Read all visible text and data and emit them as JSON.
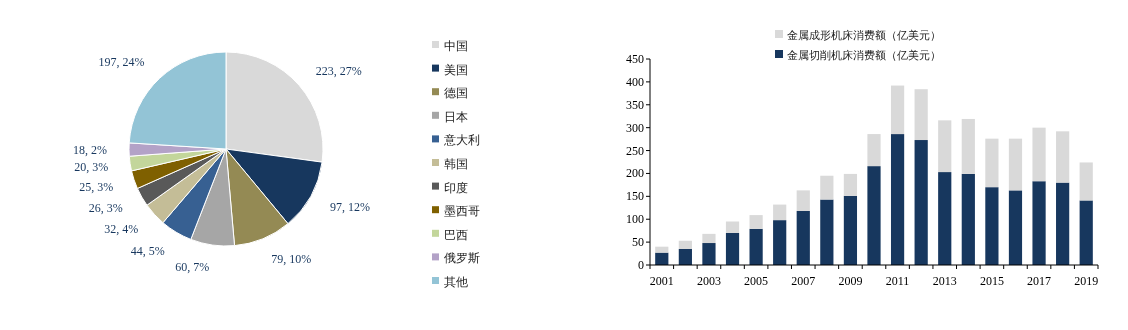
{
  "chart_data": [
    {
      "type": "pie",
      "categories": [
        "中国",
        "美国",
        "德国",
        "日本",
        "意大利",
        "韩国",
        "印度",
        "墨西哥",
        "巴西",
        "俄罗斯",
        "其他"
      ],
      "values": [
        223,
        97,
        79,
        60,
        44,
        32,
        26,
        25,
        20,
        18,
        197
      ],
      "value_labels": [
        "223, 27%",
        "97, 12%",
        "79, 10%",
        "60, 7%",
        "44, 5%",
        "32, 4%",
        "26, 3%",
        "25, 3%",
        "20, 3%",
        "18, 2%",
        "197, 24%"
      ],
      "colors": [
        "#d9d9d9",
        "#17375e",
        "#948a54",
        "#a6a6a6",
        "#376092",
        "#c4bd97",
        "#595959",
        "#7f6000",
        "#c3d69b",
        "#b3a2c7",
        "#93c4d6"
      ],
      "legend": "right"
    },
    {
      "type": "bar",
      "stacked": true,
      "categories": [
        "2001",
        null,
        "2003",
        null,
        "2005",
        null,
        "2007",
        null,
        "2009",
        null,
        "2011",
        null,
        "2013",
        null,
        "2015",
        null,
        "2017",
        null,
        "2019"
      ],
      "series": [
        {
          "name": "金属切削机床消费额（亿美元）",
          "color": "#17375e",
          "values": [
            27,
            35,
            48,
            70,
            79,
            98,
            118,
            143,
            151,
            216,
            286,
            273,
            203,
            199,
            170,
            163,
            183,
            180,
            141
          ]
        },
        {
          "name": "金属成形机床消费额（亿美元）",
          "color": "#d9d9d9",
          "values": [
            13,
            18,
            20,
            25,
            30,
            34,
            45,
            52,
            48,
            70,
            106,
            111,
            113,
            120,
            106,
            113,
            117,
            112,
            83
          ]
        }
      ],
      "ylim": [
        0,
        450
      ],
      "yticks": [
        0,
        50,
        100,
        150,
        200,
        250,
        300,
        350,
        400,
        450
      ],
      "grid": false,
      "legend": "top"
    }
  ]
}
